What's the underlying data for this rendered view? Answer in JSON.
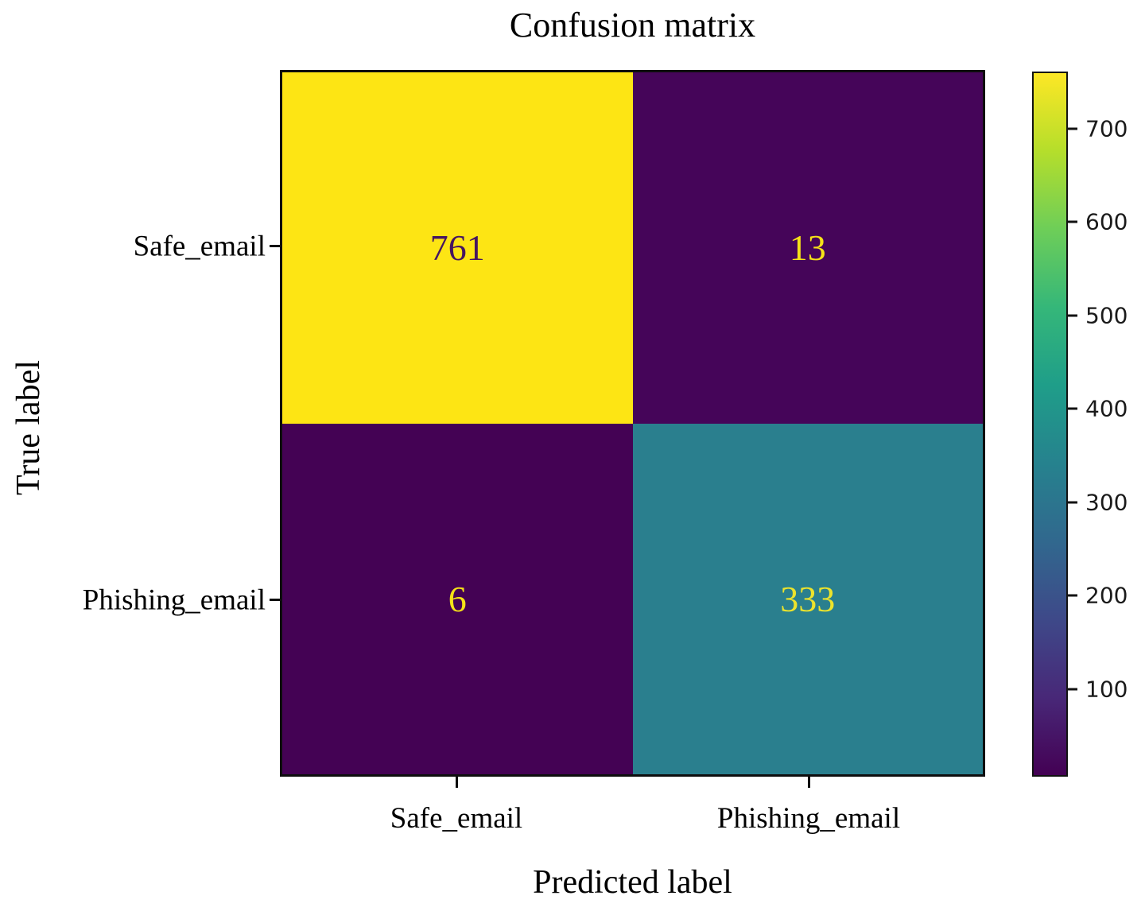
{
  "chart_data": {
    "type": "heatmap",
    "title": "Confusion matrix",
    "xlabel": "Predicted label",
    "ylabel": "True label",
    "x_categories": [
      "Safe_email",
      "Phishing_email"
    ],
    "y_categories": [
      "Safe_email",
      "Phishing_email"
    ],
    "matrix": [
      [
        761,
        13
      ],
      [
        6,
        333
      ]
    ],
    "cells": [
      {
        "true": "Safe_email",
        "predicted": "Safe_email",
        "value": 761,
        "bg": "#fde514",
        "text_color": "#461560"
      },
      {
        "true": "Safe_email",
        "predicted": "Phishing_email",
        "value": 13,
        "bg": "#450559",
        "text_color": "#f5e218"
      },
      {
        "true": "Phishing_email",
        "predicted": "Safe_email",
        "value": 6,
        "bg": "#440254",
        "text_color": "#f5e218"
      },
      {
        "true": "Phishing_email",
        "predicted": "Phishing_email",
        "value": 333,
        "bg": "#2a7f8e",
        "text_color": "#ece32c"
      }
    ],
    "colormap": "viridis",
    "colorbar": {
      "vmin": 6,
      "vmax": 761,
      "ticks": [
        700,
        600,
        500,
        400,
        300,
        200,
        100
      ],
      "gradient_bottom_to_top": [
        "#440154",
        "#482878",
        "#3e4989",
        "#31688e",
        "#26828e",
        "#1f9e89",
        "#35b779",
        "#6ece58",
        "#b5de2b",
        "#fde725"
      ]
    },
    "legend_position": "right",
    "grid": false
  }
}
